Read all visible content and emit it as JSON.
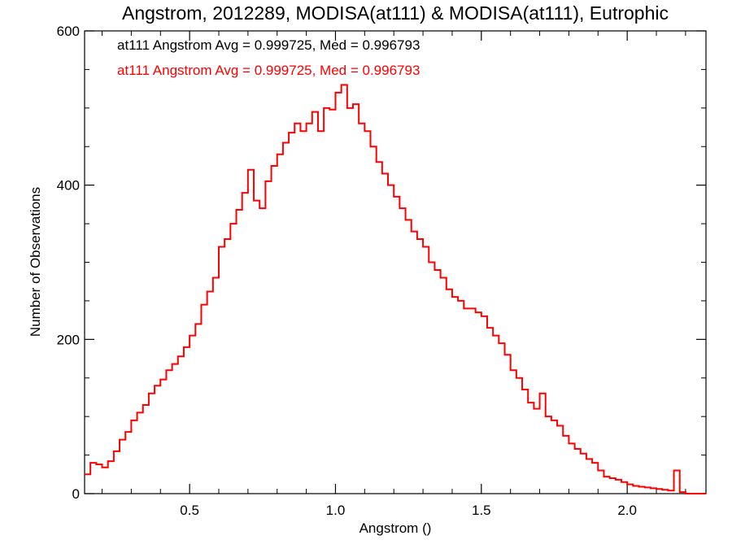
{
  "chart_data": {
    "type": "line",
    "step": true,
    "title": "Angstrom, 2012289, MODISA(at111) & MODISA(at111), Eutrophic",
    "xlabel": "Angstrom ()",
    "ylabel": "Number of Observations",
    "xlim": [
      0.14,
      2.27
    ],
    "ylim": [
      0,
      600
    ],
    "xticks": [
      0.5,
      1.0,
      1.5,
      2.0
    ],
    "xtick_labels": [
      "0.5",
      "1.0",
      "1.5",
      "2.0"
    ],
    "yticks": [
      0,
      200,
      400,
      600
    ],
    "ytick_labels": [
      "0",
      "200",
      "400",
      "600"
    ],
    "grid": false,
    "annotations": [
      {
        "text": "at111 Angstrom Avg = 0.999725, Med = 0.996793",
        "color": "#000000"
      },
      {
        "text": "at111 Angstrom Avg = 0.999725, Med = 0.996793",
        "color": "#ff0000"
      }
    ],
    "series": [
      {
        "color": "#ff0000",
        "x": [
          0.14,
          0.16,
          0.18,
          0.2,
          0.22,
          0.24,
          0.26,
          0.28,
          0.3,
          0.32,
          0.34,
          0.36,
          0.38,
          0.4,
          0.42,
          0.44,
          0.46,
          0.48,
          0.5,
          0.52,
          0.54,
          0.56,
          0.58,
          0.6,
          0.62,
          0.64,
          0.66,
          0.68,
          0.7,
          0.72,
          0.74,
          0.76,
          0.78,
          0.8,
          0.82,
          0.84,
          0.86,
          0.88,
          0.9,
          0.92,
          0.94,
          0.96,
          0.98,
          1.0,
          1.02,
          1.04,
          1.06,
          1.08,
          1.1,
          1.12,
          1.14,
          1.16,
          1.18,
          1.2,
          1.22,
          1.24,
          1.26,
          1.28,
          1.3,
          1.32,
          1.34,
          1.36,
          1.38,
          1.4,
          1.42,
          1.44,
          1.46,
          1.48,
          1.5,
          1.52,
          1.54,
          1.56,
          1.58,
          1.6,
          1.62,
          1.64,
          1.66,
          1.68,
          1.7,
          1.72,
          1.74,
          1.76,
          1.78,
          1.8,
          1.82,
          1.84,
          1.86,
          1.88,
          1.9,
          1.92,
          1.94,
          1.96,
          1.98,
          2.0,
          2.02,
          2.04,
          2.06,
          2.08,
          2.1,
          2.12,
          2.14,
          2.16,
          2.18,
          2.2,
          2.22,
          2.24,
          2.26
        ],
        "y": [
          25,
          40,
          38,
          34,
          42,
          55,
          70,
          80,
          95,
          105,
          115,
          130,
          140,
          148,
          160,
          168,
          178,
          190,
          205,
          220,
          245,
          262,
          280,
          320,
          330,
          350,
          368,
          390,
          420,
          380,
          370,
          405,
          425,
          440,
          455,
          468,
          480,
          470,
          480,
          495,
          470,
          500,
          498,
          520,
          530,
          500,
          505,
          480,
          470,
          450,
          430,
          415,
          400,
          385,
          370,
          355,
          340,
          330,
          320,
          300,
          290,
          280,
          265,
          255,
          250,
          240,
          240,
          235,
          230,
          215,
          205,
          195,
          180,
          160,
          150,
          135,
          118,
          110,
          130,
          100,
          95,
          88,
          75,
          65,
          58,
          52,
          45,
          40,
          30,
          22,
          20,
          18,
          15,
          12,
          10,
          9,
          8,
          7,
          6,
          5,
          4,
          30,
          2,
          0,
          0,
          0,
          0
        ]
      }
    ]
  }
}
